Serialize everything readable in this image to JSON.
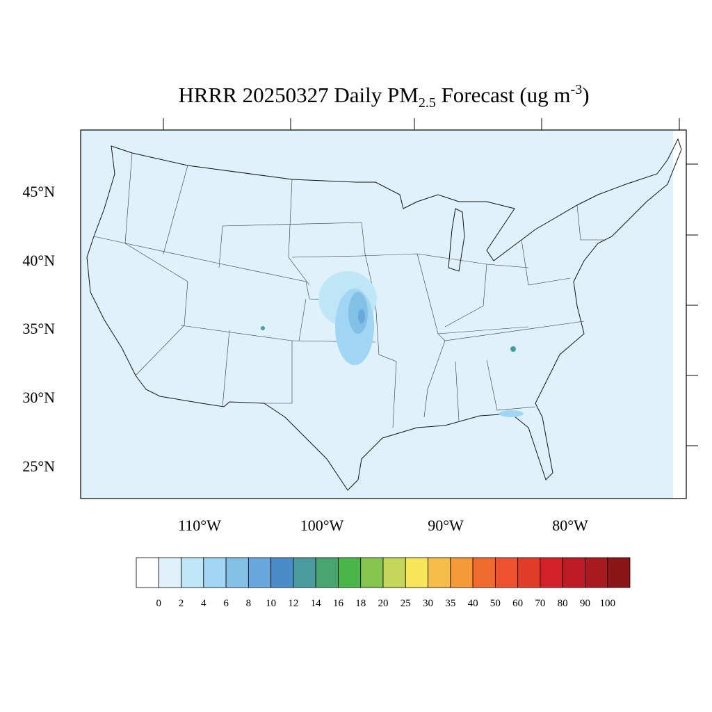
{
  "title": {
    "parts": [
      "HRRR 20250327 Daily PM",
      "2.5",
      " Forecast (ug m",
      "-3",
      ")"
    ]
  },
  "latitude_labels": [
    "45°N",
    "40°N",
    "35°N",
    "30°N",
    "25°N"
  ],
  "longitude_labels": [
    "110°W",
    "100°W",
    "90°W",
    "80°W"
  ],
  "colorbar": {
    "levels": [
      0,
      2,
      4,
      6,
      8,
      10,
      12,
      14,
      16,
      18,
      20,
      25,
      30,
      35,
      40,
      50,
      60,
      70,
      80,
      90,
      100
    ],
    "colors": [
      "#ffffff",
      "#dff2fb",
      "#bfe6f7",
      "#a0d6f3",
      "#84bfe6",
      "#68a8dc",
      "#4a8bc9",
      "#4a9b9e",
      "#48a56f",
      "#4ab64a",
      "#85c54f",
      "#c3d659",
      "#f7e65a",
      "#f7bd4a",
      "#f59a3b",
      "#f26b2e",
      "#eb522d",
      "#e23b28",
      "#d42128",
      "#bd1b25",
      "#a81a20",
      "#8c1519"
    ]
  }
}
